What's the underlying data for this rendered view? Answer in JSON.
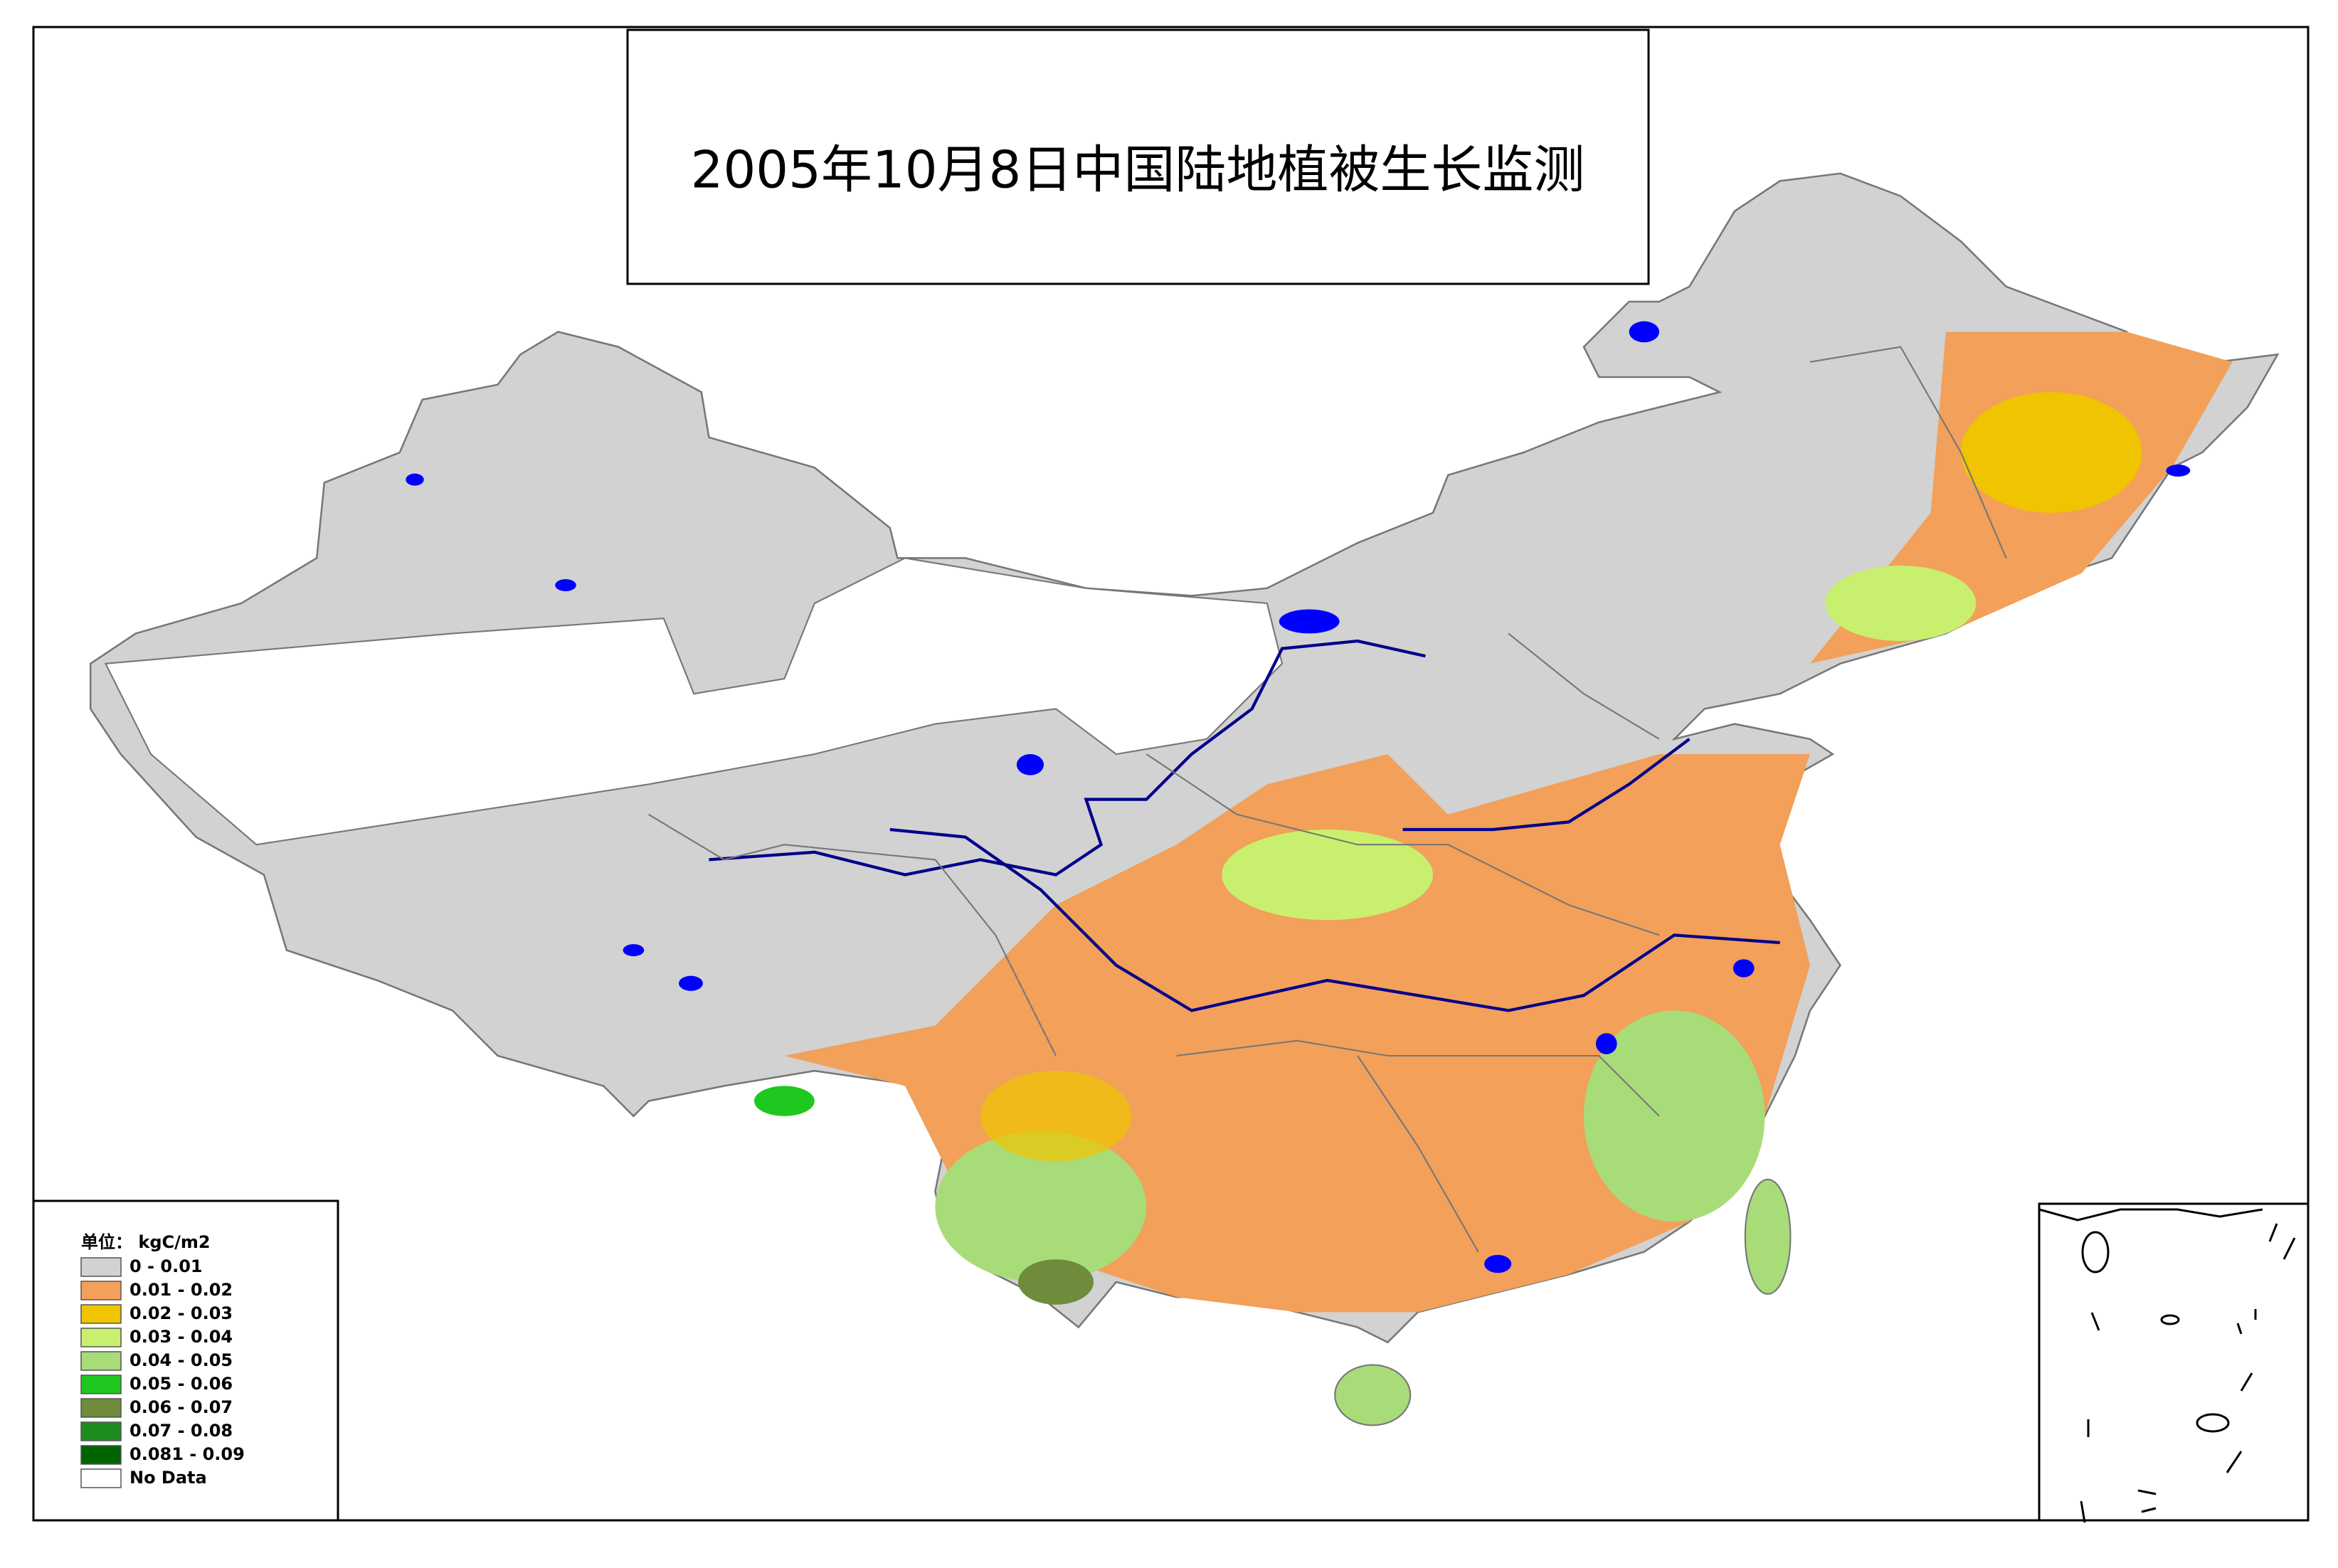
{
  "title": "2005年10月8日中国陆地植被生长监测",
  "legend": {
    "unit": "单位： kgC/m2",
    "items": [
      {
        "label": "0 - 0.01",
        "color": "#d2d2d2"
      },
      {
        "label": "0.01 - 0.02",
        "color": "#f2a05a"
      },
      {
        "label": "0.02 - 0.03",
        "color": "#f0c400"
      },
      {
        "label": "0.03 - 0.04",
        "color": "#c8f06e"
      },
      {
        "label": "0.04 - 0.05",
        "color": "#a8dc78"
      },
      {
        "label": "0.05 - 0.06",
        "color": "#1ec81e"
      },
      {
        "label": "0.06 - 0.07",
        "color": "#6e8c3c"
      },
      {
        "label": "0.07 - 0.08",
        "color": "#1e8c1e"
      },
      {
        "label": "0.081 - 0.09",
        "color": "#006400"
      },
      {
        "label": "No Data",
        "color": "#ffffff"
      }
    ]
  }
}
